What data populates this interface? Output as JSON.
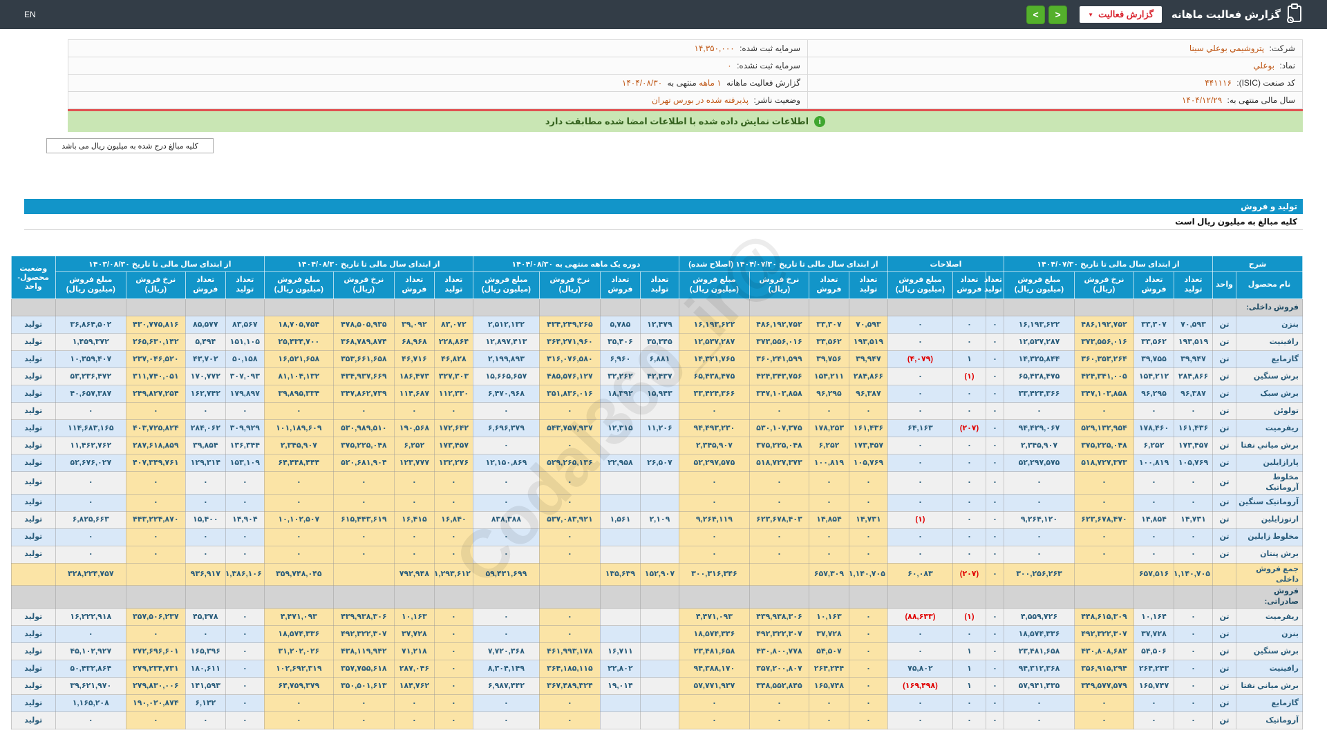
{
  "topbar": {
    "title": "گزارش فعالیت ماهانه",
    "report_type_button": "گزارش فعالیت",
    "lang": "EN"
  },
  "watermark": "@Codal360_ir",
  "company_info": {
    "rows": [
      {
        "right_label": "شرکت:",
        "right_value": "پتروشیمي بوعلي سینا",
        "left_label": "سرمایه ثبت شده:",
        "left_value": "۱۴,۳۵۰,۰۰۰"
      },
      {
        "right_label": "نماد:",
        "right_value": "بوعلي",
        "left_label": "سرمایه ثبت نشده:",
        "left_value": "۰"
      },
      {
        "right_label": "کد صنعت (ISIC):",
        "right_value": "۴۴۱۱۱۶"
      },
      {
        "right_label": "سال مالی منتهی به:",
        "right_value": "۱۴۰۴/۱۲/۲۹",
        "left_label": "وضعیت ناشر:",
        "left_value": "پذیرفته شده در بورس تهران"
      }
    ],
    "report_line": {
      "prefix": "گزارش فعالیت ماهانه",
      "period": "۱ ماهه",
      "middle": "منتهی به",
      "date": "۱۴۰۴/۰۸/۳۰"
    }
  },
  "notices": {
    "signed_info": "اطلاعات نمایش داده شده با اطلاعات امضا شده مطابقت دارد",
    "amounts_box": "کلیه مبالغ درج شده به میلیون ریال می باشد",
    "section_title": "تولید و فروش",
    "amounts_subtitle": "کلیه مبالغ به میلیون ریال است"
  },
  "table": {
    "groups": [
      {
        "label": "شرح",
        "cols": [
          "نام محصول",
          "واحد"
        ]
      },
      {
        "label": "از ابتدای سال مالی تا تاریخ ۱۴۰۴/۰۷/۳۰",
        "cols": [
          "تعداد تولید",
          "تعداد فروش",
          "نرخ فروش (ریال)",
          "مبلغ فروش (میلیون ریال)"
        ]
      },
      {
        "label": "اصلاحات",
        "cols": [
          "تعداد تولید",
          "تعداد فروش",
          "مبلغ فروش (میلیون ریال)"
        ]
      },
      {
        "label": "از ابتدای سال مالی تا تاریخ ۱۴۰۴/۰۷/۳۰ (اصلاح شده)",
        "cols": [
          "تعداد تولید",
          "تعداد فروش",
          "نرخ فروش (ریال)",
          "مبلغ فروش (میلیون ریال)"
        ]
      },
      {
        "label": "دوره یک ماهه منتهی به ۱۴۰۴/۰۸/۳۰",
        "cols": [
          "تعداد تولید",
          "تعداد فروش",
          "نرخ فروش (ریال)",
          "مبلغ فروش (میلیون ریال)"
        ]
      },
      {
        "label": "از ابتدای سال مالی تا تاریخ ۱۴۰۴/۰۸/۳۰",
        "cols": [
          "تعداد تولید",
          "تعداد فروش",
          "نرخ فروش (ریال)",
          "مبلغ فروش (میلیون ریال)"
        ]
      },
      {
        "label": "از ابتدای سال مالی تا تاریخ ۱۴۰۳/۰۸/۳۰",
        "cols": [
          "تعداد تولید",
          "تعداد فروش",
          "نرخ فروش (ریال)",
          "مبلغ فروش (میلیون ریال)"
        ]
      },
      {
        "label": "وضعیت محصول-واحد",
        "cols": []
      }
    ],
    "sections": [
      {
        "title": "فروش داخلی:",
        "rows": [
          {
            "name": "بنزن",
            "unit": "تن",
            "status": "تولید",
            "cells": [
              "۷۰,۵۹۳",
              "۳۳,۳۰۷",
              "۴۸۶,۱۹۲,۷۵۲",
              "۱۶,۱۹۳,۶۲۲",
              "۰",
              "۰",
              "۰",
              "۷۰,۵۹۳",
              "۳۳,۳۰۷",
              "۴۸۶,۱۹۲,۷۵۲",
              "۱۶,۱۹۳,۶۲۲",
              "۱۲,۴۷۹",
              "۵,۷۸۵",
              "۴۳۴,۲۴۹,۲۶۵",
              "۲,۵۱۲,۱۳۲",
              "۸۳,۰۷۲",
              "۳۹,۰۹۲",
              "۴۷۸,۵۰۵,۹۳۵",
              "۱۸,۷۰۵,۷۵۴",
              "۸۳,۵۶۷",
              "۸۵,۵۷۷",
              "۴۳۰,۷۷۵,۸۱۶",
              "۳۶,۸۶۴,۵۰۲"
            ]
          },
          {
            "name": "رافینیت",
            "unit": "تن",
            "status": "تولید",
            "cells": [
              "۱۹۳,۵۱۹",
              "۳۳,۵۶۲",
              "۳۷۳,۵۵۶,۰۱۶",
              "۱۲,۵۳۷,۲۸۷",
              "۰",
              "۰",
              "۰",
              "۱۹۳,۵۱۹",
              "۳۳,۵۶۲",
              "۳۷۳,۵۵۶,۰۱۶",
              "۱۲,۵۳۷,۲۸۷",
              "۳۵,۳۴۵",
              "۳۵,۴۰۶",
              "۳۶۴,۲۷۱,۹۶۰",
              "۱۲,۸۹۷,۴۱۳",
              "۲۲۸,۸۶۴",
              "۶۸,۹۶۸",
              "۳۶۸,۷۸۹,۸۷۴",
              "۲۵,۴۳۴,۷۰۰",
              "۱۵۱,۱۰۵",
              "۵,۴۹۴",
              "۲۶۵,۶۳۰,۱۴۲",
              "۱,۴۵۹,۳۷۲"
            ]
          },
          {
            "name": "گازمایع",
            "unit": "تن",
            "status": "تولید",
            "cells": [
              "۳۹,۹۴۷",
              "۳۹,۷۵۵",
              "۳۶۰,۳۵۳,۲۶۴",
              "۱۴,۳۲۵,۸۴۴",
              "۰",
              "۱",
              "(۴,۰۷۹)",
              "۳۹,۹۴۷",
              "۳۹,۷۵۶",
              "۳۶۰,۲۴۱,۵۹۹",
              "۱۴,۳۲۱,۷۶۵",
              "۶,۸۸۱",
              "۶,۹۶۰",
              "۳۱۶,۰۷۶,۵۸۰",
              "۲,۱۹۹,۸۹۳",
              "۴۶,۸۲۸",
              "۴۶,۷۱۶",
              "۳۵۳,۶۶۱,۶۵۸",
              "۱۶,۵۲۱,۶۵۸",
              "۵۰,۱۵۸",
              "۴۳,۷۰۲",
              "۲۳۷,۰۴۶,۵۲۰",
              "۱۰,۳۵۹,۴۰۷"
            ]
          },
          {
            "name": "برش سنگین",
            "unit": "تن",
            "status": "تولید",
            "cells": [
              "۲۸۴,۸۶۶",
              "۱۵۴,۲۱۲",
              "۴۲۴,۳۴۱,۰۰۵",
              "۶۵,۴۳۸,۴۷۵",
              "۰",
              "(۱)",
              "۰",
              "۲۸۴,۸۶۶",
              "۱۵۴,۲۱۱",
              "۴۲۴,۳۴۳,۷۵۶",
              "۶۵,۴۳۸,۴۷۵",
              "۴۲,۴۳۷",
              "۳۲,۲۶۲",
              "۴۸۵,۵۷۶,۱۲۷",
              "۱۵,۶۶۵,۶۵۷",
              "۳۲۷,۳۰۳",
              "۱۸۶,۴۷۳",
              "۴۳۴,۹۳۷,۶۶۹",
              "۸۱,۱۰۴,۱۳۲",
              "۳۰۷,۰۹۳",
              "۱۷۰,۷۷۲",
              "۳۱۱,۷۴۰,۰۵۱",
              "۵۳,۲۳۶,۴۷۲"
            ]
          },
          {
            "name": "برش سبک",
            "unit": "تن",
            "status": "تولید",
            "cells": [
              "۹۶,۳۸۷",
              "۹۶,۲۹۵",
              "۳۴۷,۱۰۳,۸۵۸",
              "۳۳,۴۲۴,۳۶۶",
              "۰",
              "۰",
              "۰",
              "۹۶,۳۸۷",
              "۹۶,۲۹۵",
              "۳۴۷,۱۰۳,۸۵۸",
              "۳۳,۴۲۴,۳۶۶",
              "۱۵,۹۴۳",
              "۱۸,۳۹۲",
              "۳۵۱,۸۳۶,۰۱۶",
              "۶,۴۷۰,۹۶۸",
              "۱۱۲,۳۳۰",
              "۱۱۴,۶۸۷",
              "۳۴۷,۸۶۲,۷۳۹",
              "۳۹,۸۹۵,۳۳۴",
              "۱۷۹,۸۹۷",
              "۱۶۲,۷۴۲",
              "۲۴۹,۸۲۷,۲۵۴",
              "۴۰,۶۵۷,۳۸۷"
            ]
          },
          {
            "name": "تولوئن",
            "unit": "تن",
            "status": "تولید",
            "cells": [
              "۰",
              "۰",
              "۰",
              "۰",
              "۰",
              "۰",
              "۰",
              "۰",
              "۰",
              "۰",
              "۰",
              "",
              "",
              "۰",
              "۰",
              "۰",
              "۰",
              "۰",
              "۰",
              "۰",
              "۰",
              "۰",
              "۰"
            ]
          },
          {
            "name": "ریفرمیت",
            "unit": "تن",
            "status": "تولید",
            "cells": [
              "۱۶۱,۴۳۶",
              "۱۷۸,۴۶۰",
              "۵۲۹,۱۳۲,۹۵۴",
              "۹۴,۴۲۹,۰۶۷",
              "۰",
              "(۲۰۷)",
              "۶۴,۱۶۳",
              "۱۶۱,۴۳۶",
              "۱۷۸,۲۵۳",
              "۵۳۰,۱۰۷,۳۷۵",
              "۹۴,۴۹۳,۲۳۰",
              "۱۱,۲۰۶",
              "۱۲,۳۱۵",
              "۵۴۳,۷۵۷,۹۳۷",
              "۶,۶۹۶,۳۷۹",
              "۱۷۲,۶۴۲",
              "۱۹۰,۵۶۸",
              "۵۳۰,۹۸۹,۵۱۰",
              "۱۰۱,۱۸۹,۶۰۹",
              "۳۰۹,۹۲۹",
              "۲۸۴,۰۶۲",
              "۴۰۳,۷۲۵,۸۲۴",
              "۱۱۴,۶۸۳,۱۶۵"
            ]
          },
          {
            "name": "برش میاني نفتا",
            "unit": "تن",
            "status": "تولید",
            "cells": [
              "۱۷۳,۴۵۷",
              "۶,۲۵۲",
              "۳۷۵,۲۲۵,۰۴۸",
              "۲,۳۴۵,۹۰۷",
              "۰",
              "۰",
              "۰",
              "۱۷۳,۴۵۷",
              "۶,۲۵۲",
              "۳۷۵,۲۲۵,۰۴۸",
              "۲,۳۴۵,۹۰۷",
              "",
              "",
              "۰",
              "۰",
              "۱۷۳,۴۵۷",
              "۶,۲۵۲",
              "۳۷۵,۲۲۵,۰۴۸",
              "۲,۳۴۵,۹۰۷",
              "۱۳۶,۳۴۴",
              "۳۹,۸۵۴",
              "۲۸۷,۶۱۸,۸۵۹",
              "۱۱,۴۶۲,۷۶۲"
            ]
          },
          {
            "name": "پارازایلین",
            "unit": "تن",
            "status": "تولید",
            "cells": [
              "۱۰۵,۷۶۹",
              "۱۰۰,۸۱۹",
              "۵۱۸,۷۲۷,۳۷۳",
              "۵۲,۲۹۷,۵۷۵",
              "۰",
              "۰",
              "۰",
              "۱۰۵,۷۶۹",
              "۱۰۰,۸۱۹",
              "۵۱۸,۷۲۷,۳۷۳",
              "۵۲,۲۹۷,۵۷۵",
              "۲۶,۵۰۷",
              "۲۲,۹۵۸",
              "۵۲۹,۲۶۵,۱۳۶",
              "۱۲,۱۵۰,۸۶۹",
              "۱۳۲,۲۷۶",
              "۱۲۳,۷۷۷",
              "۵۲۰,۶۸۱,۹۰۴",
              "۶۴,۴۴۸,۴۴۴",
              "۱۵۳,۱۰۹",
              "۱۲۹,۳۱۴",
              "۴۰۷,۳۴۹,۷۶۱",
              "۵۲,۶۷۶,۰۲۷"
            ]
          },
          {
            "name": "مخلوط آروماتیک",
            "unit": "تن",
            "status": "تولید",
            "cells": [
              "۰",
              "۰",
              "۰",
              "۰",
              "۰",
              "۰",
              "۰",
              "۰",
              "۰",
              "۰",
              "۰",
              "",
              "",
              "۰",
              "۰",
              "۰",
              "۰",
              "۰",
              "۰",
              "۰",
              "۰",
              "۰",
              "۰"
            ]
          },
          {
            "name": "آروماتیک سنگین",
            "unit": "تن",
            "status": "تولید",
            "cells": [
              "۰",
              "۰",
              "۰",
              "۰",
              "۰",
              "۰",
              "۰",
              "۰",
              "۰",
              "۰",
              "۰",
              "",
              "",
              "۰",
              "۰",
              "۰",
              "۰",
              "۰",
              "۰",
              "۰",
              "۰",
              "۰",
              "۰"
            ]
          },
          {
            "name": "ارتوزایلین",
            "unit": "تن",
            "status": "تولید",
            "cells": [
              "۱۴,۷۳۱",
              "۱۴,۸۵۴",
              "۶۲۳,۶۷۸,۴۷۰",
              "۹,۲۶۴,۱۲۰",
              "۰",
              "۰",
              "(۱)",
              "۱۴,۷۳۱",
              "۱۴,۸۵۴",
              "۶۲۳,۶۷۸,۴۰۳",
              "۹,۲۶۴,۱۱۹",
              "۲,۱۰۹",
              "۱,۵۶۱",
              "۵۳۷,۰۸۳,۹۲۱",
              "۸۳۸,۳۸۸",
              "۱۶,۸۴۰",
              "۱۶,۴۱۵",
              "۶۱۵,۴۴۳,۶۱۹",
              "۱۰,۱۰۲,۵۰۷",
              "۱۴,۹۰۴",
              "۱۵,۴۰۰",
              "۴۴۳,۲۲۴,۸۷۰",
              "۶,۸۲۵,۶۶۳"
            ]
          },
          {
            "name": "مخلوط زایلین",
            "unit": "تن",
            "status": "تولید",
            "cells": [
              "۰",
              "۰",
              "۰",
              "۰",
              "۰",
              "۰",
              "۰",
              "۰",
              "۰",
              "۰",
              "۰",
              "",
              "",
              "۰",
              "۰",
              "۰",
              "۰",
              "۰",
              "۰",
              "۰",
              "۰",
              "۰",
              "۰"
            ]
          },
          {
            "name": "برش پنتان",
            "unit": "تن",
            "status": "تولید",
            "cells": [
              "۰",
              "۰",
              "۰",
              "۰",
              "۰",
              "۰",
              "۰",
              "۰",
              "۰",
              "۰",
              "۰",
              "",
              "",
              "۰",
              "۰",
              "۰",
              "۰",
              "۰",
              "۰",
              "۰",
              "۰",
              "۰",
              "۰"
            ]
          },
          {
            "name": "جمع فروش داخلی",
            "unit": "",
            "status": "",
            "total": true,
            "cells": [
              "۱,۱۴۰,۷۰۵",
              "۶۵۷,۵۱۶",
              "",
              "۳۰۰,۲۵۶,۲۶۳",
              "۰",
              "(۲۰۷)",
              "۶۰,۰۸۳",
              "۱,۱۴۰,۷۰۵",
              "۶۵۷,۳۰۹",
              "",
              "۳۰۰,۳۱۶,۳۴۶",
              "۱۵۲,۹۰۷",
              "۱۳۵,۶۳۹",
              "",
              "۵۹,۴۳۱,۶۹۹",
              "۱,۲۹۳,۶۱۲",
              "۷۹۲,۹۴۸",
              "",
              "۳۵۹,۷۴۸,۰۴۵",
              "۱,۳۸۶,۱۰۶",
              "۹۳۶,۹۱۷",
              "",
              "۳۲۸,۲۲۴,۷۵۷"
            ]
          }
        ]
      },
      {
        "title": "فروش صادراتی:",
        "rows": [
          {
            "name": "ریفرمیت",
            "unit": "تن",
            "status": "تولید",
            "cells": [
              "۰",
              "۱۰,۱۶۴",
              "۴۴۸,۶۱۵,۳۰۹",
              "۴,۵۵۹,۷۲۶",
              "۰",
              "(۱)",
              "(۸۸,۶۳۳)",
              "۰",
              "۱۰,۱۶۳",
              "۴۳۹,۹۳۸,۳۰۶",
              "۴,۴۷۱,۰۹۳",
              "",
              "",
              "۰",
              "۰",
              "۰",
              "۱۰,۱۶۳",
              "۴۳۹,۹۳۸,۳۰۶",
              "۴,۴۷۱,۰۹۳",
              "۰",
              "۴۵,۳۷۸",
              "۳۵۷,۵۰۶,۲۳۷",
              "۱۶,۲۲۲,۹۱۸"
            ]
          },
          {
            "name": "بنزن",
            "unit": "تن",
            "status": "تولید",
            "cells": [
              "۰",
              "۳۷,۷۲۸",
              "۴۹۲,۳۲۲,۳۰۷",
              "۱۸,۵۷۴,۳۳۶",
              "۰",
              "۰",
              "۰",
              "۰",
              "۳۷,۷۲۸",
              "۴۹۲,۳۲۲,۳۰۷",
              "۱۸,۵۷۴,۳۳۶",
              "",
              "",
              "۰",
              "۰",
              "۰",
              "۳۷,۷۲۸",
              "۴۹۲,۳۲۲,۳۰۷",
              "۱۸,۵۷۴,۳۳۶",
              "۰",
              "۰",
              "۰",
              "۰"
            ]
          },
          {
            "name": "برش سنگین",
            "unit": "تن",
            "status": "تولید",
            "cells": [
              "۰",
              "۵۴,۵۰۶",
              "۴۳۰,۸۰۸,۶۸۲",
              "۲۳,۴۸۱,۶۵۸",
              "۰",
              "۱",
              "۰",
              "۰",
              "۵۴,۵۰۷",
              "۴۳۰,۸۰۰,۷۷۸",
              "۲۳,۴۸۱,۶۵۸",
              "",
              "۱۶,۷۱۱",
              "۴۶۱,۹۹۳,۱۷۸",
              "۷,۷۲۰,۳۶۸",
              "۰",
              "۷۱,۲۱۸",
              "۴۳۸,۱۱۹,۹۴۲",
              "۳۱,۲۰۲,۰۲۶",
              "۰",
              "۱۶۵,۳۹۶",
              "۲۷۲,۶۹۶,۶۰۱",
              "۴۵,۱۰۲,۹۲۷"
            ]
          },
          {
            "name": "رافینیت",
            "unit": "تن",
            "status": "تولید",
            "cells": [
              "۰",
              "۲۶۴,۲۴۳",
              "۳۵۶,۹۱۵,۲۹۴",
              "۹۴,۳۱۲,۳۶۸",
              "۰",
              "۱",
              "۷۵,۸۰۲",
              "۰",
              "۲۶۴,۲۴۴",
              "۳۵۷,۲۰۰,۸۰۷",
              "۹۴,۳۸۸,۱۷۰",
              "",
              "۲۲,۸۰۲",
              "۳۶۴,۱۸۵,۱۱۵",
              "۸,۳۰۴,۱۴۹",
              "۰",
              "۲۸۷,۰۴۶",
              "۳۵۷,۷۵۵,۶۱۸",
              "۱۰۲,۶۹۲,۳۱۹",
              "۰",
              "۱۸۰,۶۱۱",
              "۲۷۹,۲۳۴,۷۳۱",
              "۵۰,۴۳۲,۸۶۴"
            ]
          },
          {
            "name": "برش میاني نفتا",
            "unit": "تن",
            "status": "تولید",
            "cells": [
              "۰",
              "۱۶۵,۷۴۷",
              "۳۴۹,۵۷۷,۵۷۹",
              "۵۷,۹۴۱,۴۳۵",
              "۰",
              "۱",
              "(۱۶۹,۴۹۸)",
              "۰",
              "۱۶۵,۷۴۸",
              "۳۴۸,۵۵۲,۸۴۵",
              "۵۷,۷۷۱,۹۳۷",
              "",
              "۱۹,۰۱۴",
              "۳۶۷,۴۸۹,۳۲۴",
              "۶,۹۸۷,۴۴۲",
              "۰",
              "۱۸۴,۷۶۲",
              "۳۵۰,۵۰۱,۶۱۳",
              "۶۴,۷۵۹,۳۷۹",
              "۰",
              "۱۴۱,۵۹۳",
              "۲۷۹,۸۳۰,۰۰۶",
              "۳۹,۶۲۱,۹۷۰"
            ]
          },
          {
            "name": "گازمایع",
            "unit": "تن",
            "status": "تولید",
            "cells": [
              "۰",
              "۰",
              "۰",
              "۰",
              "۰",
              "۰",
              "۰",
              "۰",
              "۰",
              "۰",
              "۰",
              "",
              "",
              "۰",
              "۰",
              "۰",
              "۰",
              "۰",
              "۰",
              "۰",
              "۶,۱۳۲",
              "۱۹۰,۰۲۰,۸۷۴",
              "۱,۱۶۵,۲۰۸"
            ]
          },
          {
            "name": "آروماتیک",
            "unit": "تن",
            "status": "تولید",
            "cells": [
              "۰",
              "۰",
              "۰",
              "۰",
              "۰",
              "۰",
              "۰",
              "۰",
              "۰",
              "۰",
              "۰",
              "",
              "",
              "۰",
              "۰",
              "۰",
              "۰",
              "۰",
              "۰",
              "۰",
              "۰",
              "۰",
              "۰"
            ]
          }
        ]
      }
    ]
  }
}
